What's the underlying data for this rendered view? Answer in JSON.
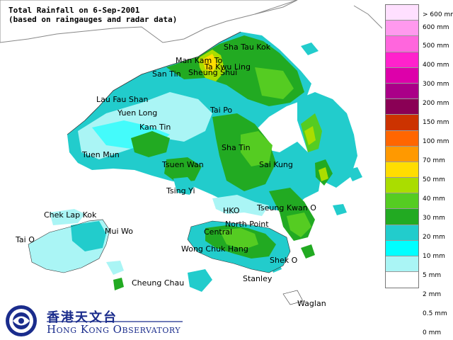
{
  "title": {
    "line1": "Total Rainfall on 6-Sep-2001",
    "line2": "(based on raingauges and radar data)"
  },
  "places": [
    {
      "id": "sha-tau-kok",
      "label": "Sha Tau Kok"
    },
    {
      "id": "man-kam-to",
      "label": "Man Kam To"
    },
    {
      "id": "ta-kwu-ling",
      "label": "Ta Kwu Ling"
    },
    {
      "id": "san-tin",
      "label": "San Tin"
    },
    {
      "id": "sheung-shui",
      "label": "Sheung Shui"
    },
    {
      "id": "lau-fau-shan",
      "label": "Lau Fau Shan"
    },
    {
      "id": "yuen-long",
      "label": "Yuen Long"
    },
    {
      "id": "tai-po",
      "label": "Tai Po"
    },
    {
      "id": "kam-tin",
      "label": "Kam Tin"
    },
    {
      "id": "sha-tin",
      "label": "Sha Tin"
    },
    {
      "id": "tuen-mun",
      "label": "Tuen Mun"
    },
    {
      "id": "tsuen-wan",
      "label": "Tsuen Wan"
    },
    {
      "id": "sai-kung",
      "label": "Sai Kung"
    },
    {
      "id": "tsing-yi",
      "label": "Tsing Yi"
    },
    {
      "id": "chek-lap-kok",
      "label": "Chek Lap Kok"
    },
    {
      "id": "hko",
      "label": "HKO"
    },
    {
      "id": "tseung-kwan-o",
      "label": "Tseung Kwan O"
    },
    {
      "id": "mui-wo",
      "label": "Mui Wo"
    },
    {
      "id": "north-point",
      "label": "North Point"
    },
    {
      "id": "tai-o",
      "label": "Tai O"
    },
    {
      "id": "central",
      "label": "Central"
    },
    {
      "id": "wong-chuk-hang",
      "label": "Wong Chuk Hang"
    },
    {
      "id": "shek-o",
      "label": "Shek O"
    },
    {
      "id": "cheung-chau",
      "label": "Cheung Chau"
    },
    {
      "id": "stanley",
      "label": "Stanley"
    },
    {
      "id": "waglan",
      "label": "Waglan"
    }
  ],
  "legend": [
    {
      "label": "> 600 mm",
      "color": "#ffe0ff"
    },
    {
      "label": "600 mm",
      "color": "#ff99ee"
    },
    {
      "label": "500 mm",
      "color": "#ff66dd"
    },
    {
      "label": "400 mm",
      "color": "#ff22cc"
    },
    {
      "label": "300 mm",
      "color": "#dd00aa"
    },
    {
      "label": "200 mm",
      "color": "#aa0088"
    },
    {
      "label": "150 mm",
      "color": "#8a0055"
    },
    {
      "label": "100 mm",
      "color": "#cc3300"
    },
    {
      "label": "70 mm",
      "color": "#ff6600"
    },
    {
      "label": "50 mm",
      "color": "#ff9900"
    },
    {
      "label": "40 mm",
      "color": "#ffdd00"
    },
    {
      "label": "30 mm",
      "color": "#aadd00"
    },
    {
      "label": "20 mm",
      "color": "#55cc22"
    },
    {
      "label": "10 mm",
      "color": "#22aa22"
    },
    {
      "label": "5 mm",
      "color": "#22cccc"
    },
    {
      "label": "2 mm",
      "color": "#00ffff"
    },
    {
      "label": "0.5 mm",
      "color": "#aaf5f5"
    },
    {
      "label": "0 mm",
      "color": "#ffffff"
    }
  ],
  "logo": {
    "chinese": "香港天文台",
    "english": "Hong Kong Observatory"
  }
}
